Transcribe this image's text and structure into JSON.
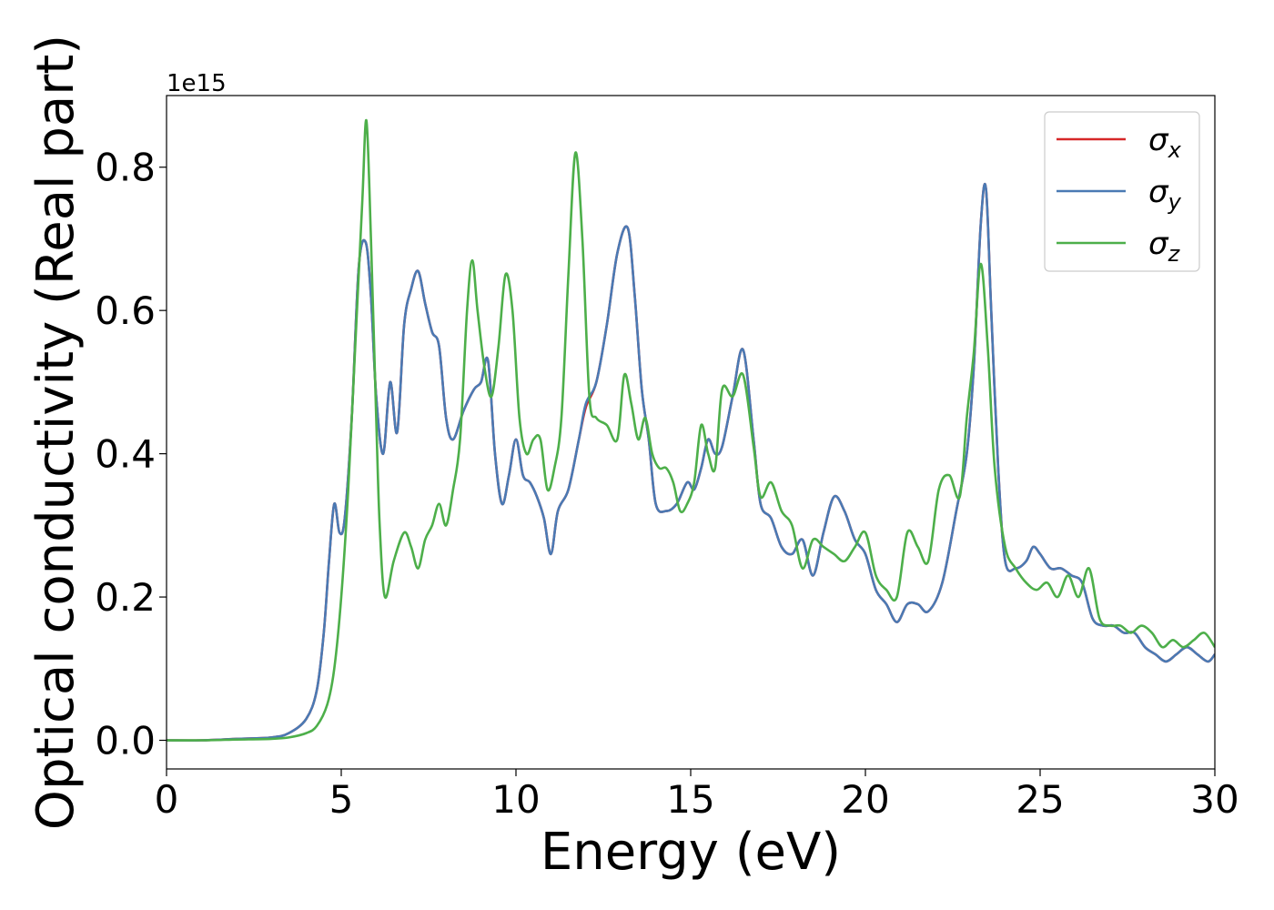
{
  "chart_data": {
    "type": "line",
    "xlabel": "Energy (eV)",
    "ylabel": "Optical conductivity (Real part)",
    "offset_text": "1e15",
    "xlim": [
      0,
      30
    ],
    "ylim": [
      -0.04,
      0.9
    ],
    "x_ticks": [
      "0",
      "5",
      "10",
      "15",
      "20",
      "25",
      "30"
    ],
    "y_ticks": [
      "0.0",
      "0.2",
      "0.4",
      "0.6",
      "0.8"
    ],
    "legend_position": "top-right",
    "series": [
      {
        "name": "σx",
        "legend_base": "σ",
        "legend_sub": "x",
        "color": "#d62728",
        "x": [
          0,
          1,
          2,
          3,
          3.5,
          4,
          4.3,
          4.5,
          4.65,
          4.8,
          4.95,
          5.1,
          5.3,
          5.5,
          5.7,
          5.85,
          6.0,
          6.2,
          6.4,
          6.6,
          6.8,
          7.0,
          7.2,
          7.4,
          7.6,
          7.8,
          8.0,
          8.2,
          8.5,
          8.8,
          9.0,
          9.2,
          9.4,
          9.6,
          9.8,
          10.0,
          10.2,
          10.4,
          10.6,
          10.8,
          11.0,
          11.2,
          11.5,
          11.8,
          12.0,
          12.3,
          12.6,
          12.9,
          13.2,
          13.4,
          13.6,
          13.8,
          14.0,
          14.3,
          14.6,
          14.9,
          15.1,
          15.3,
          15.5,
          15.7,
          15.9,
          16.2,
          16.5,
          16.8,
          17.0,
          17.3,
          17.6,
          17.9,
          18.2,
          18.5,
          18.8,
          19.1,
          19.4,
          19.7,
          20.0,
          20.3,
          20.6,
          20.9,
          21.2,
          21.5,
          21.8,
          22.2,
          22.6,
          22.9,
          23.1,
          23.3,
          23.45,
          23.6,
          23.8,
          24.0,
          24.3,
          24.6,
          24.8,
          25.0,
          25.3,
          25.6,
          25.9,
          26.2,
          26.5,
          26.8,
          27.1,
          27.4,
          27.7,
          28.0,
          28.3,
          28.6,
          28.9,
          29.2,
          29.5,
          29.8,
          30.0
        ],
        "values": [
          0.0,
          0.0,
          0.002,
          0.004,
          0.01,
          0.03,
          0.07,
          0.15,
          0.25,
          0.33,
          0.29,
          0.31,
          0.45,
          0.66,
          0.695,
          0.62,
          0.48,
          0.4,
          0.5,
          0.43,
          0.58,
          0.63,
          0.655,
          0.61,
          0.57,
          0.55,
          0.45,
          0.42,
          0.46,
          0.49,
          0.5,
          0.53,
          0.4,
          0.33,
          0.37,
          0.42,
          0.37,
          0.36,
          0.34,
          0.31,
          0.26,
          0.32,
          0.35,
          0.42,
          0.465,
          0.5,
          0.58,
          0.68,
          0.715,
          0.62,
          0.49,
          0.42,
          0.33,
          0.32,
          0.33,
          0.36,
          0.35,
          0.38,
          0.42,
          0.4,
          0.41,
          0.48,
          0.545,
          0.42,
          0.33,
          0.31,
          0.27,
          0.26,
          0.28,
          0.23,
          0.29,
          0.34,
          0.32,
          0.28,
          0.26,
          0.21,
          0.19,
          0.165,
          0.19,
          0.19,
          0.18,
          0.22,
          0.32,
          0.4,
          0.52,
          0.72,
          0.77,
          0.6,
          0.38,
          0.25,
          0.24,
          0.25,
          0.27,
          0.26,
          0.24,
          0.24,
          0.23,
          0.22,
          0.17,
          0.16,
          0.16,
          0.15,
          0.15,
          0.13,
          0.12,
          0.11,
          0.12,
          0.13,
          0.12,
          0.11,
          0.12
        ]
      },
      {
        "name": "σy",
        "legend_base": "σ",
        "legend_sub": "y",
        "color": "#4a7ab4",
        "x": [
          0,
          1,
          2,
          3,
          3.5,
          4,
          4.3,
          4.5,
          4.65,
          4.8,
          4.95,
          5.1,
          5.3,
          5.5,
          5.7,
          5.85,
          6.0,
          6.2,
          6.4,
          6.6,
          6.8,
          7.0,
          7.2,
          7.4,
          7.6,
          7.8,
          8.0,
          8.2,
          8.5,
          8.8,
          9.0,
          9.2,
          9.4,
          9.6,
          9.8,
          10.0,
          10.2,
          10.4,
          10.6,
          10.8,
          11.0,
          11.2,
          11.5,
          11.8,
          12.0,
          12.3,
          12.6,
          12.9,
          13.2,
          13.4,
          13.6,
          13.8,
          14.0,
          14.3,
          14.6,
          14.9,
          15.1,
          15.3,
          15.5,
          15.7,
          15.9,
          16.2,
          16.5,
          16.8,
          17.0,
          17.3,
          17.6,
          17.9,
          18.2,
          18.5,
          18.8,
          19.1,
          19.4,
          19.7,
          20.0,
          20.3,
          20.6,
          20.9,
          21.2,
          21.5,
          21.8,
          22.2,
          22.6,
          22.9,
          23.1,
          23.3,
          23.45,
          23.6,
          23.8,
          24.0,
          24.3,
          24.6,
          24.8,
          25.0,
          25.3,
          25.6,
          25.9,
          26.2,
          26.5,
          26.8,
          27.1,
          27.4,
          27.7,
          28.0,
          28.3,
          28.6,
          28.9,
          29.2,
          29.5,
          29.8,
          30.0
        ],
        "values": [
          0.0,
          0.0,
          0.002,
          0.004,
          0.01,
          0.03,
          0.07,
          0.15,
          0.25,
          0.33,
          0.29,
          0.31,
          0.45,
          0.66,
          0.695,
          0.62,
          0.48,
          0.4,
          0.5,
          0.43,
          0.58,
          0.63,
          0.655,
          0.61,
          0.57,
          0.55,
          0.45,
          0.42,
          0.46,
          0.49,
          0.5,
          0.53,
          0.4,
          0.33,
          0.37,
          0.42,
          0.37,
          0.36,
          0.34,
          0.31,
          0.26,
          0.32,
          0.35,
          0.42,
          0.47,
          0.5,
          0.58,
          0.68,
          0.715,
          0.62,
          0.49,
          0.42,
          0.33,
          0.32,
          0.33,
          0.36,
          0.35,
          0.38,
          0.42,
          0.4,
          0.41,
          0.48,
          0.545,
          0.42,
          0.33,
          0.31,
          0.27,
          0.26,
          0.28,
          0.23,
          0.29,
          0.34,
          0.32,
          0.28,
          0.26,
          0.21,
          0.19,
          0.165,
          0.19,
          0.19,
          0.18,
          0.22,
          0.32,
          0.4,
          0.52,
          0.72,
          0.77,
          0.6,
          0.38,
          0.25,
          0.24,
          0.25,
          0.27,
          0.26,
          0.24,
          0.24,
          0.23,
          0.22,
          0.17,
          0.16,
          0.16,
          0.15,
          0.15,
          0.13,
          0.12,
          0.11,
          0.12,
          0.13,
          0.12,
          0.11,
          0.12
        ]
      },
      {
        "name": "σz",
        "legend_base": "σ",
        "legend_sub": "z",
        "color": "#4daf4a",
        "x": [
          0,
          1,
          2,
          3,
          3.5,
          4,
          4.3,
          4.6,
          4.8,
          5.0,
          5.2,
          5.4,
          5.6,
          5.72,
          5.85,
          6.0,
          6.1,
          6.25,
          6.5,
          6.8,
          7.0,
          7.2,
          7.4,
          7.6,
          7.8,
          8.0,
          8.2,
          8.4,
          8.6,
          8.75,
          8.9,
          9.1,
          9.3,
          9.5,
          9.7,
          9.9,
          10.1,
          10.3,
          10.5,
          10.7,
          10.9,
          11.1,
          11.3,
          11.5,
          11.7,
          11.9,
          12.1,
          12.3,
          12.6,
          12.9,
          13.1,
          13.3,
          13.5,
          13.7,
          13.9,
          14.1,
          14.3,
          14.5,
          14.7,
          14.9,
          15.1,
          15.3,
          15.5,
          15.7,
          15.9,
          16.2,
          16.5,
          16.8,
          17.0,
          17.3,
          17.6,
          17.9,
          18.2,
          18.5,
          18.8,
          19.1,
          19.4,
          19.7,
          20.0,
          20.3,
          20.6,
          20.9,
          21.2,
          21.5,
          21.8,
          22.1,
          22.4,
          22.7,
          22.9,
          23.1,
          23.3,
          23.5,
          23.7,
          24.0,
          24.3,
          24.6,
          24.9,
          25.2,
          25.5,
          25.8,
          26.1,
          26.4,
          26.7,
          27.0,
          27.3,
          27.6,
          27.9,
          28.2,
          28.5,
          28.8,
          29.1,
          29.4,
          29.7,
          30.0
        ],
        "values": [
          0.0,
          0.0,
          0.001,
          0.002,
          0.004,
          0.01,
          0.02,
          0.05,
          0.1,
          0.2,
          0.35,
          0.55,
          0.75,
          0.865,
          0.7,
          0.45,
          0.3,
          0.2,
          0.25,
          0.29,
          0.27,
          0.24,
          0.28,
          0.3,
          0.33,
          0.3,
          0.35,
          0.42,
          0.6,
          0.67,
          0.6,
          0.52,
          0.48,
          0.55,
          0.65,
          0.6,
          0.45,
          0.4,
          0.42,
          0.42,
          0.35,
          0.38,
          0.45,
          0.65,
          0.82,
          0.7,
          0.48,
          0.45,
          0.44,
          0.42,
          0.51,
          0.47,
          0.42,
          0.45,
          0.4,
          0.38,
          0.38,
          0.36,
          0.32,
          0.33,
          0.36,
          0.44,
          0.4,
          0.38,
          0.49,
          0.48,
          0.51,
          0.41,
          0.34,
          0.36,
          0.32,
          0.3,
          0.24,
          0.28,
          0.27,
          0.26,
          0.25,
          0.27,
          0.29,
          0.23,
          0.21,
          0.2,
          0.29,
          0.27,
          0.25,
          0.35,
          0.37,
          0.34,
          0.45,
          0.54,
          0.665,
          0.55,
          0.38,
          0.27,
          0.24,
          0.22,
          0.21,
          0.22,
          0.2,
          0.23,
          0.2,
          0.24,
          0.17,
          0.16,
          0.16,
          0.15,
          0.16,
          0.15,
          0.13,
          0.14,
          0.13,
          0.14,
          0.15,
          0.13
        ]
      }
    ]
  }
}
